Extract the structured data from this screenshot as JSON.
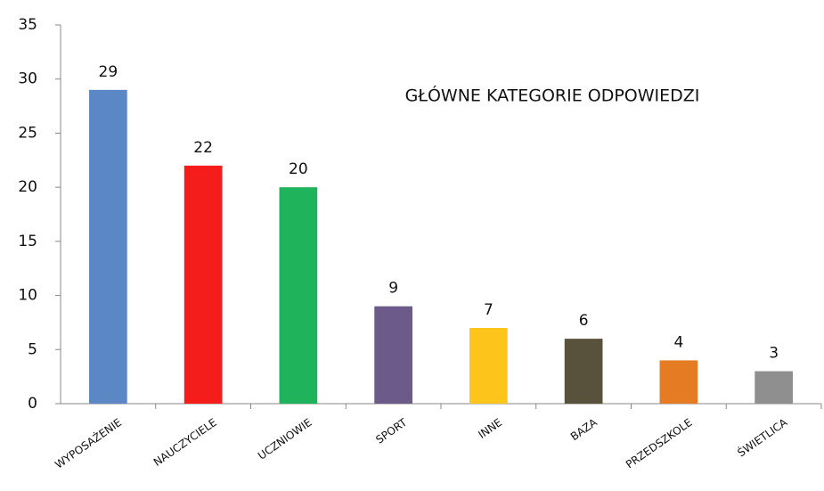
{
  "chart_data": {
    "type": "bar",
    "title": "GŁÓWNE KATEGORIE ODPOWIEDZI",
    "categories": [
      "WYPOSAŻENIE",
      "NAUCZYCIELE",
      "UCZNIOWIE",
      "SPORT",
      "INNE",
      "BAZA",
      "PRZEDSZKOLE",
      "ŚWIETLICA"
    ],
    "values": [
      29,
      22,
      20,
      9,
      7,
      6,
      4,
      3
    ],
    "colors": [
      "#5b87c5",
      "#f51c1c",
      "#1fb35c",
      "#6b5a8a",
      "#fdc41b",
      "#58513b",
      "#e57c23",
      "#8f8f8f"
    ],
    "ylim": [
      0,
      35
    ],
    "yticks": [
      0,
      5,
      10,
      15,
      20,
      25,
      30,
      35
    ],
    "grid": false
  }
}
